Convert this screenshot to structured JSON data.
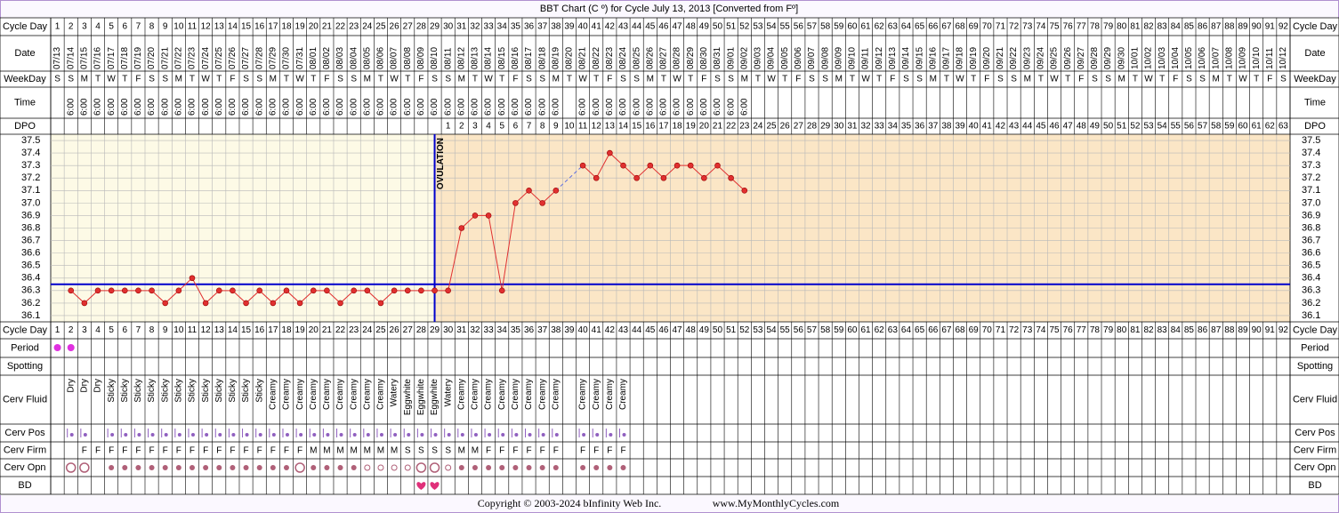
{
  "chart_data": {
    "type": "line",
    "title": "BBT Chart (C º) for Cycle July 13, 2013  [Converted from Fº]",
    "row_labels": {
      "cycle_day": "Cycle Day",
      "date": "Date",
      "weekday": "WeekDay",
      "time": "Time",
      "dpo": "DPO",
      "period": "Period",
      "spotting": "Spotting",
      "cerv_fluid": "Cerv Fluid",
      "cerv_pos": "Cerv Pos",
      "cerv_firm": "Cerv Firm",
      "cerv_opn": "Cerv Opn",
      "bd": "BD"
    },
    "categories": [
      1,
      2,
      3,
      4,
      5,
      6,
      7,
      8,
      9,
      10,
      11,
      12,
      13,
      14,
      15,
      16,
      17,
      18,
      19,
      20,
      21,
      22,
      23,
      24,
      25,
      26,
      27,
      28,
      29,
      30,
      31,
      32,
      33,
      34,
      35,
      36,
      37,
      38,
      39,
      40,
      41,
      42,
      43,
      44,
      45,
      46,
      47,
      48,
      49,
      50,
      51,
      52,
      53,
      54,
      55,
      56,
      57,
      58,
      59,
      60,
      61,
      62,
      63,
      64,
      65,
      66,
      67,
      68,
      69,
      70,
      71,
      72,
      73,
      74,
      75,
      76,
      77,
      78,
      79,
      80,
      81,
      82,
      83,
      84,
      85,
      86,
      87,
      88,
      89,
      90,
      91,
      92
    ],
    "dates": [
      "07/13",
      "07/14",
      "07/15",
      "07/16",
      "07/17",
      "07/18",
      "07/19",
      "07/20",
      "07/21",
      "07/22",
      "07/23",
      "07/24",
      "07/25",
      "07/26",
      "07/27",
      "07/28",
      "07/29",
      "07/30",
      "07/31",
      "08/01",
      "08/02",
      "08/03",
      "08/04",
      "08/05",
      "08/06",
      "08/07",
      "08/08",
      "08/09",
      "08/10",
      "08/11",
      "08/12",
      "08/13",
      "08/14",
      "08/15",
      "08/16",
      "08/17",
      "08/18",
      "08/19",
      "08/20",
      "08/21",
      "08/22",
      "08/23",
      "08/24",
      "08/25",
      "08/26",
      "08/27",
      "08/28",
      "08/29",
      "08/30",
      "08/31",
      "09/01",
      "09/02",
      "09/03",
      "09/04",
      "09/05",
      "09/06",
      "09/07",
      "09/08",
      "09/09",
      "09/10",
      "09/11",
      "09/12",
      "09/13",
      "09/14",
      "09/15",
      "09/16",
      "09/17",
      "09/18",
      "09/19",
      "09/20",
      "09/21",
      "09/22",
      "09/23",
      "09/24",
      "09/25",
      "09/26",
      "09/27",
      "09/28",
      "09/29",
      "09/30",
      "10/01",
      "10/02",
      "10/03",
      "10/04",
      "10/05",
      "10/06",
      "10/07",
      "10/08",
      "10/09",
      "10/10",
      "10/11",
      "10/12"
    ],
    "weekdays": [
      "S",
      "S",
      "M",
      "T",
      "W",
      "T",
      "F",
      "S",
      "S",
      "M",
      "T",
      "W",
      "T",
      "F",
      "S",
      "S",
      "M",
      "T",
      "W",
      "T",
      "F",
      "S",
      "S",
      "M",
      "T",
      "W",
      "T",
      "F",
      "S",
      "S",
      "M",
      "T",
      "W",
      "T",
      "F",
      "S",
      "S",
      "M",
      "T",
      "W",
      "T",
      "F",
      "S",
      "S",
      "M",
      "T",
      "W",
      "T",
      "F",
      "S",
      "S",
      "M",
      "T",
      "W",
      "T",
      "F",
      "S",
      "S",
      "M",
      "T",
      "W",
      "T",
      "F",
      "S",
      "S",
      "M",
      "T",
      "W",
      "T",
      "F",
      "S",
      "S",
      "M",
      "T",
      "W",
      "T",
      "F",
      "S",
      "S",
      "M",
      "T",
      "W",
      "T",
      "F",
      "S",
      "S",
      "M",
      "T",
      "W",
      "T",
      "F",
      "S"
    ],
    "times": [
      null,
      "6:00",
      "6:00",
      "6:00",
      "6:00",
      "6:00",
      "6:00",
      "6:00",
      "6:00",
      "6:00",
      "6:00",
      "6:00",
      "6:00",
      "6:00",
      "6:00",
      "6:00",
      "6:00",
      "6:00",
      "6:00",
      "6:00",
      "6:00",
      "6:00",
      "6:00",
      "6:00",
      "6:00",
      "6:00",
      "6:00",
      "6:00",
      "6:00",
      "6:00",
      "6:00",
      "6:00",
      "6:00",
      "6:00",
      "6:00",
      "6:00",
      "6:00",
      "6:00",
      null,
      "6:00",
      "6:00",
      "6:00",
      "6:00",
      "6:00",
      "6:00",
      "6:00",
      "6:00",
      "6:00",
      "6:00",
      "6:00",
      "6:00",
      "6:00",
      null,
      null,
      null,
      null,
      null,
      null,
      null,
      null,
      null,
      null,
      null,
      null,
      null,
      null,
      null,
      null,
      null,
      null,
      null,
      null,
      null,
      null,
      null,
      null,
      null,
      null,
      null,
      null,
      null,
      null,
      null,
      null,
      null,
      null,
      null,
      null,
      null,
      null,
      null,
      null
    ],
    "dpo": [
      null,
      null,
      null,
      null,
      null,
      null,
      null,
      null,
      null,
      null,
      null,
      null,
      null,
      null,
      null,
      null,
      null,
      null,
      null,
      null,
      null,
      null,
      null,
      null,
      null,
      null,
      null,
      null,
      null,
      1,
      2,
      3,
      4,
      5,
      6,
      7,
      8,
      9,
      10,
      11,
      12,
      13,
      14,
      15,
      16,
      17,
      18,
      19,
      20,
      21,
      22,
      23,
      24,
      25,
      26,
      27,
      28,
      29,
      30,
      31,
      32,
      33,
      34,
      35,
      36,
      37,
      38,
      39,
      40,
      41,
      42,
      43,
      44,
      45,
      46,
      47,
      48,
      49,
      50,
      51,
      52,
      53,
      54,
      55,
      56,
      57,
      58,
      59,
      60,
      61,
      62,
      63
    ],
    "series": [
      {
        "color": "#e03030",
        "values": [
          null,
          36.3,
          36.2,
          36.3,
          36.3,
          36.3,
          36.3,
          36.3,
          36.2,
          36.3,
          36.4,
          36.2,
          36.3,
          36.3,
          36.2,
          36.3,
          36.2,
          36.3,
          36.2,
          36.3,
          36.3,
          36.2,
          36.3,
          36.3,
          36.2,
          36.3,
          36.3,
          36.3,
          36.3,
          36.3,
          36.8,
          36.9,
          36.9,
          36.3,
          37.0,
          37.1,
          37.0,
          37.1,
          null,
          37.3,
          37.2,
          37.4,
          37.3,
          37.2,
          37.3,
          37.2,
          37.3,
          37.3,
          37.2,
          37.3,
          37.2,
          37.1,
          null,
          null,
          null,
          null,
          null,
          null,
          null,
          null,
          null,
          null,
          null,
          null,
          null,
          null,
          null,
          null,
          null,
          null,
          null,
          null,
          null,
          null,
          null,
          null,
          null,
          null,
          null,
          null,
          null,
          null,
          null,
          null,
          null,
          null,
          null,
          null,
          null,
          null,
          null,
          null
        ]
      }
    ],
    "ylim": [
      36.05,
      37.55
    ],
    "yticks": [
      37.5,
      37.4,
      37.3,
      37.2,
      37.1,
      {
        "value": 37,
        "label": "37.0"
      },
      36.9,
      36.8,
      36.7,
      36.6,
      36.5,
      36.4,
      36.3,
      36.2,
      36.1
    ],
    "grid": true,
    "coverline": 36.35,
    "coverline_color": "#0000cc",
    "ovulation_day": 29,
    "ovulation_label": "OVULATION",
    "cerv_fluid": [
      null,
      "Dry",
      "Dry",
      "Dry",
      "Sticky",
      "Sticky",
      "Sticky",
      "Sticky",
      "Sticky",
      "Sticky",
      "Sticky",
      "Sticky",
      "Sticky",
      "Sticky",
      "Sticky",
      "Sticky",
      "Creamy",
      "Creamy",
      "Creamy",
      "Creamy",
      "Creamy",
      "Creamy",
      "Creamy",
      "Creamy",
      "Creamy",
      "Watery",
      "Eggwhite",
      "Eggwhite",
      "Eggwhite",
      "Watery",
      "Creamy",
      "Creamy",
      "Creamy",
      "Creamy",
      "Creamy",
      "Creamy",
      "Creamy",
      "Creamy",
      null,
      "Creamy",
      "Creamy",
      "Creamy",
      "Creamy",
      null,
      null,
      null,
      null,
      null,
      null,
      null,
      null,
      null,
      null,
      null,
      null,
      null,
      null,
      null,
      null,
      null,
      null,
      null,
      null,
      null,
      null,
      null,
      null,
      null,
      null,
      null,
      null,
      null,
      null,
      null,
      null,
      null,
      null,
      null,
      null,
      null,
      null,
      null,
      null,
      null,
      null,
      null,
      null,
      null,
      null,
      null,
      null,
      null
    ],
    "cerv_firm": [
      null,
      null,
      "F",
      "F",
      "F",
      "F",
      "F",
      "F",
      "F",
      "F",
      "F",
      "F",
      "F",
      "F",
      "F",
      "F",
      "F",
      "F",
      "F",
      "M",
      "M",
      "M",
      "M",
      "M",
      "M",
      "M",
      "S",
      "S",
      "S",
      "S",
      "M",
      "M",
      "F",
      "F",
      "F",
      "F",
      "F",
      "F",
      null,
      "F",
      "F",
      "F",
      "F",
      null,
      null,
      null,
      null,
      null,
      null,
      null,
      null,
      null,
      null,
      null,
      null,
      null,
      null,
      null,
      null,
      null,
      null,
      null,
      null,
      null,
      null,
      null,
      null,
      null,
      null,
      null,
      null,
      null,
      null,
      null,
      null,
      null,
      null,
      null,
      null,
      null,
      null,
      null,
      null,
      null,
      null,
      null,
      null,
      null,
      null,
      null,
      null,
      null
    ],
    "copyright": "Copyright © 2003-2024 bInfinity Web Inc.",
    "website": "www.MyMonthlyCycles.com"
  }
}
